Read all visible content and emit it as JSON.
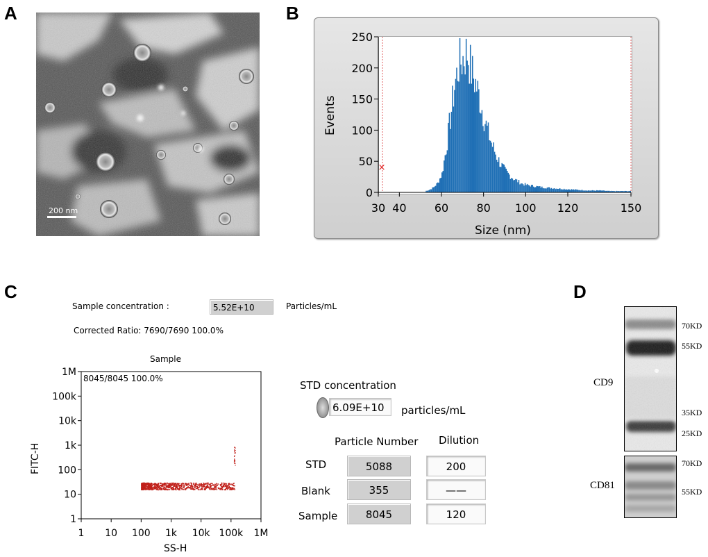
{
  "panel_labels": {
    "a": "A",
    "b": "B",
    "c": "C",
    "d": "D"
  },
  "panel_a": {
    "scale_bar_label": "200 nm"
  },
  "chart_data": [
    {
      "type": "bar",
      "panel": "B",
      "xlabel": "Size (nm)",
      "ylabel": "Events",
      "xlim": [
        30,
        150
      ],
      "ylim": [
        0,
        250
      ],
      "xticks": [
        30,
        40,
        60,
        80,
        100,
        120,
        150
      ],
      "yticks": [
        0,
        50,
        100,
        150,
        200,
        250
      ],
      "x": [
        52,
        54,
        56,
        58,
        60,
        62,
        64,
        66,
        68,
        70,
        72,
        74,
        76,
        78,
        80,
        82,
        84,
        86,
        88,
        90,
        92,
        94,
        96,
        98,
        100,
        104,
        108,
        112,
        116,
        120,
        125,
        130,
        135,
        140,
        145,
        148
      ],
      "values": [
        2,
        4,
        8,
        15,
        30,
        70,
        120,
        170,
        205,
        215,
        225,
        195,
        175,
        150,
        120,
        95,
        75,
        58,
        45,
        35,
        28,
        22,
        18,
        14,
        12,
        10,
        8,
        7,
        6,
        5,
        4,
        3,
        3,
        2,
        2,
        2
      ],
      "series_color": "#1f6fb5",
      "gate_markers": [
        32,
        150
      ]
    },
    {
      "type": "scatter",
      "panel": "C",
      "title": "Sample",
      "xlabel": "SS-H",
      "ylabel": "FITC-H",
      "xscale": "log",
      "yscale": "log",
      "xlim": [
        1,
        1000000
      ],
      "ylim": [
        1,
        1000000
      ],
      "xticks": [
        "1",
        "10",
        "100",
        "1k",
        "10k",
        "100k",
        "1M"
      ],
      "yticks": [
        "1",
        "10",
        "100",
        "1k",
        "10k",
        "100k",
        "1M"
      ],
      "gate_text": "8045/8045  100.0%",
      "cluster": {
        "x_range": [
          100,
          130000
        ],
        "y_center": 22
      },
      "point_color": "#c0201a"
    }
  ],
  "panel_c": {
    "sample_concentration_label": "Sample  concentration :",
    "sample_concentration_value": "5.52E+10",
    "sample_concentration_unit": "Particles/mL",
    "corrected_ratio": "Corrected Ratio:  7690/7690  100.0%",
    "std_concentration_label": "STD concentration",
    "std_concentration_value": "6.09E+10",
    "std_concentration_unit": "particles/mL",
    "table_headers": {
      "particle_number": "Particle Number",
      "dilution": "Dilution"
    },
    "rows": [
      {
        "name": "STD",
        "particles": "5088",
        "dilution": "200"
      },
      {
        "name": "Blank",
        "particles": "355",
        "dilution": "——"
      },
      {
        "name": "Sample",
        "particles": "8045",
        "dilution": "120"
      }
    ]
  },
  "panel_d": {
    "cd9_label": "CD9",
    "cd81_label": "CD81",
    "cd9_markers": [
      "70KD",
      "55KD",
      "35KD",
      "25KD"
    ],
    "cd81_markers": [
      "70KD",
      "55KD"
    ]
  }
}
